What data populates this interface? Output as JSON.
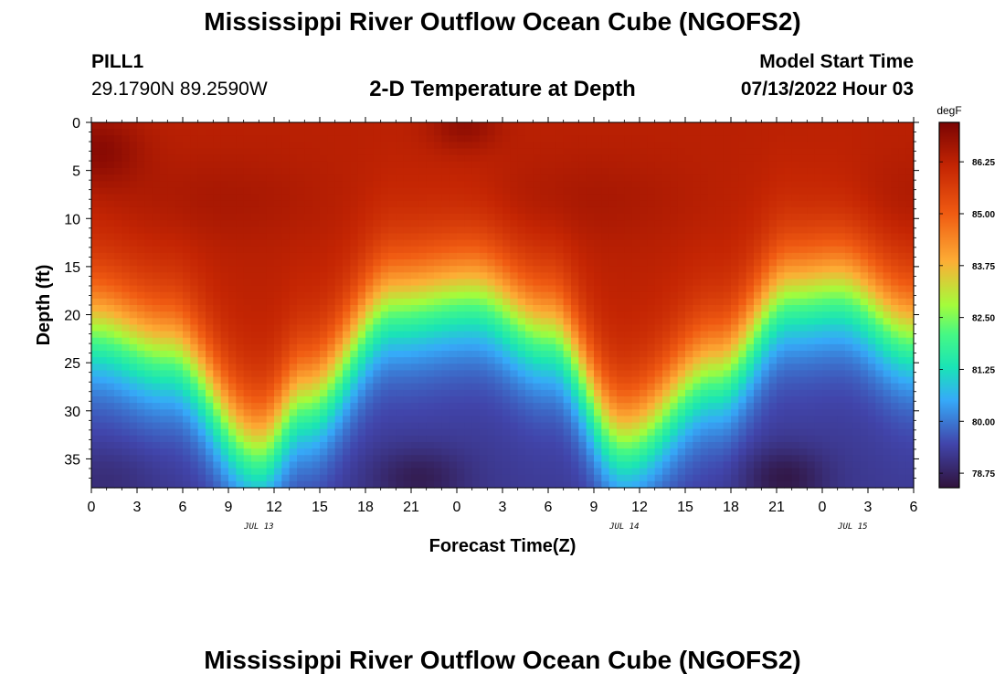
{
  "header": {
    "title": "Mississippi River Outflow Ocean Cube (NGOFS2)",
    "station": "PILL1",
    "coordinates": "29.1790N  89.2590W",
    "subtitle": "2-D Temperature at Depth",
    "model_start_label": "Model Start Time",
    "model_start_value": "07/13/2022 Hour 03"
  },
  "footer": {
    "title": "Mississippi River Outflow Ocean Cube (NGOFS2)"
  },
  "chart_data": {
    "type": "heatmap",
    "title": "2-D Temperature at Depth",
    "xlabel": "Forecast Time(Z)",
    "ylabel": "Depth (ft)",
    "x_tick_labels": [
      "0",
      "3",
      "6",
      "9",
      "12",
      "15",
      "18",
      "21",
      "0",
      "3",
      "6",
      "9",
      "12",
      "15",
      "18",
      "21",
      "0",
      "3",
      "6"
    ],
    "x_range_hours": [
      0,
      54
    ],
    "date_labels": [
      {
        "label": "JUL 13",
        "hour": 11
      },
      {
        "label": "JUL 14",
        "hour": 35
      },
      {
        "label": "JUL 15",
        "hour": 50
      }
    ],
    "y_tick_labels": [
      "0",
      "5",
      "10",
      "15",
      "20",
      "25",
      "30",
      "35"
    ],
    "y_range_ft": [
      0,
      38
    ],
    "y_inverted": true,
    "colorbar": {
      "unit": "degF",
      "ticks": [
        "86.25",
        "85.00",
        "83.75",
        "82.50",
        "81.25",
        "80.00",
        "78.75"
      ],
      "tick_values": [
        86.25,
        85.0,
        83.75,
        82.5,
        81.25,
        80.0,
        78.75
      ],
      "range": [
        78.4,
        87.2
      ]
    },
    "thermocline_depth_by_hour": [
      {
        "hour": 0,
        "depth_ft": 21.5
      },
      {
        "hour": 5,
        "depth_ft": 24
      },
      {
        "hour": 11,
        "depth_ft": 34
      },
      {
        "hour": 14,
        "depth_ft": 29
      },
      {
        "hour": 20,
        "depth_ft": 19
      },
      {
        "hour": 25,
        "depth_ft": 18
      },
      {
        "hour": 30,
        "depth_ft": 22
      },
      {
        "hour": 35,
        "depth_ft": 33
      },
      {
        "hour": 41,
        "depth_ft": 26
      },
      {
        "hour": 46,
        "depth_ft": 18
      },
      {
        "hour": 49,
        "depth_ft": 17.5
      },
      {
        "hour": 54,
        "depth_ft": 22
      }
    ],
    "surface_temp_degF": 86.3,
    "bottom_temp_degF": 79.2
  }
}
